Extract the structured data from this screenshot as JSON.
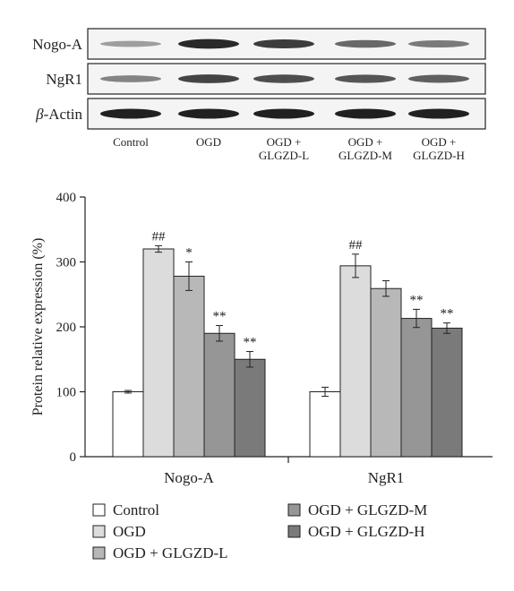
{
  "blot": {
    "rows": [
      {
        "label": "Nogo-A",
        "italic_prefix": ""
      },
      {
        "label": "NgR1",
        "italic_prefix": ""
      },
      {
        "label": "-Actin",
        "italic_prefix": "β"
      }
    ],
    "lanes": [
      [
        "Control"
      ],
      [
        "OGD"
      ],
      [
        "OGD +",
        "GLGZD-L"
      ],
      [
        "OGD +",
        "GLGZD-M"
      ],
      [
        "OGD +",
        "GLGZD-H"
      ]
    ],
    "band_intensity": [
      [
        0.3,
        0.95,
        0.85,
        0.6,
        0.5
      ],
      [
        0.45,
        0.8,
        0.75,
        0.7,
        0.65
      ],
      [
        1.0,
        1.0,
        1.0,
        1.0,
        1.0
      ]
    ]
  },
  "chart_data": {
    "type": "bar",
    "categories": [
      "Nogo-A",
      "NgR1"
    ],
    "ylabel": "Protein relative expression (%)",
    "ylim": [
      0,
      400
    ],
    "yticks": [
      0,
      100,
      200,
      300,
      400
    ],
    "series": [
      {
        "name": "Control",
        "color": "#ffffff",
        "values": [
          100,
          100
        ],
        "errors": [
          2,
          7
        ],
        "annotations": [
          "",
          ""
        ]
      },
      {
        "name": "OGD",
        "color": "#dcdcdc",
        "values": [
          320,
          294
        ],
        "errors": [
          5,
          18
        ],
        "annotations": [
          "##",
          "##"
        ]
      },
      {
        "name": "OGD + GLGZD-L",
        "color": "#b8b8b8",
        "values": [
          278,
          259
        ],
        "errors": [
          22,
          12
        ],
        "annotations": [
          "*",
          ""
        ]
      },
      {
        "name": "OGD + GLGZD-M",
        "color": "#969696",
        "values": [
          190,
          213
        ],
        "errors": [
          12,
          14
        ],
        "annotations": [
          "**",
          "**"
        ]
      },
      {
        "name": "OGD + GLGZD-H",
        "color": "#7a7a7a",
        "values": [
          150,
          198
        ],
        "errors": [
          12,
          8
        ],
        "annotations": [
          "**",
          "**"
        ]
      }
    ],
    "legend_position": "bottom"
  }
}
